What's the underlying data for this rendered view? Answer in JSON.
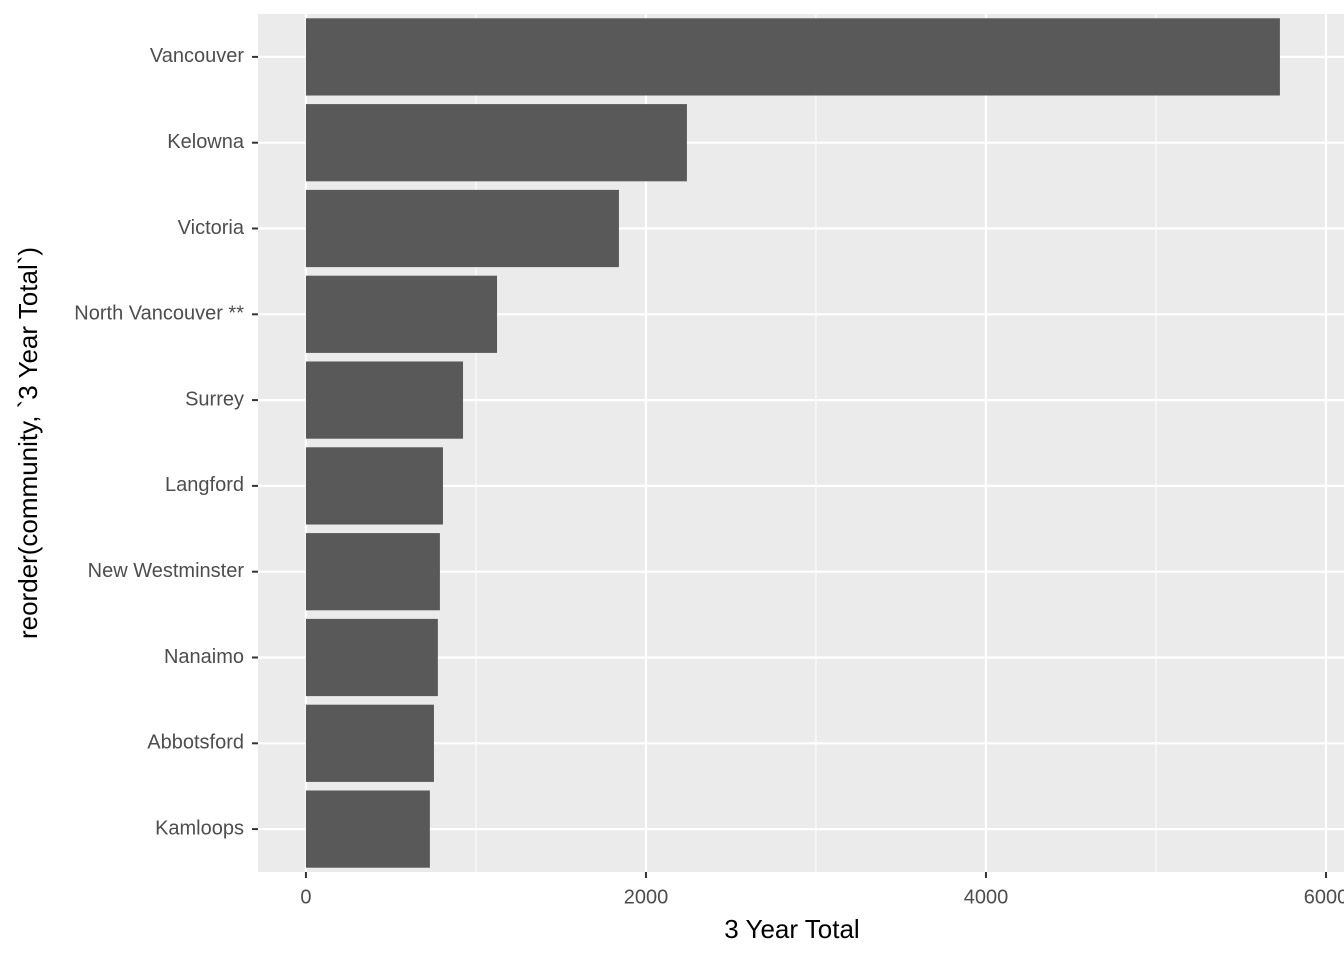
{
  "chart_data": {
    "type": "barh",
    "x_label": "3 Year Total",
    "y_label": "reorder(community, `3 Year Total`)",
    "categories": [
      "Vancouver",
      "Kelowna",
      "Victoria",
      "North Vancouver **",
      "Surrey",
      "Langford",
      "New Westminster",
      "Nanaimo",
      "Abbotsford",
      "Kamloops"
    ],
    "values": [
      5729,
      2241,
      1841,
      1124,
      924,
      806,
      788,
      776,
      753,
      729
    ],
    "color": "#595959",
    "xlim": [
      -282,
      6106
    ],
    "xticks": [
      0,
      2000,
      4000,
      6000
    ],
    "grid": true
  }
}
